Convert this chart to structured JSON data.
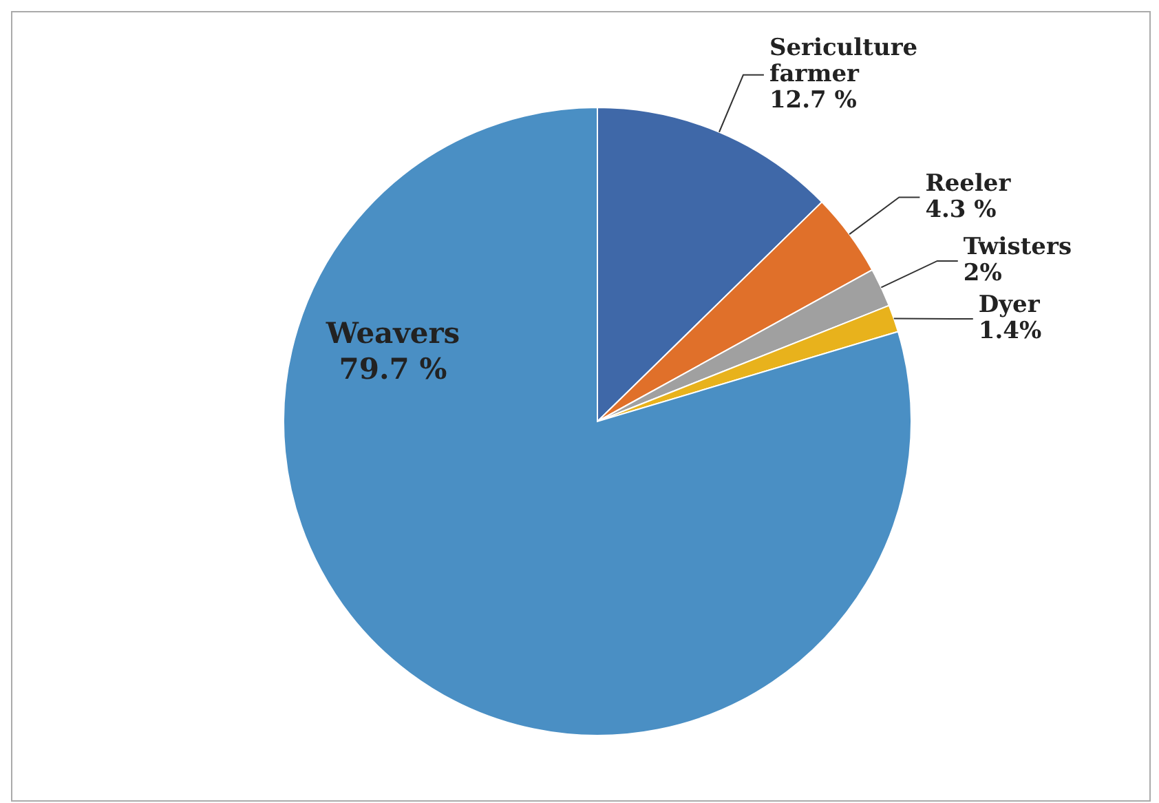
{
  "chart_data": {
    "type": "pie",
    "categories": [
      "Sericulture farmer",
      "Reeler",
      "Twisters",
      "Dyer",
      "Weavers"
    ],
    "values": [
      12.7,
      4.3,
      2,
      1.4,
      79.7
    ],
    "colors": [
      "#3f68a8",
      "#e0702a",
      "#a0a0a0",
      "#e8b21c",
      "#4a8fc4"
    ],
    "value_labels": [
      "12.7 %",
      "4.3 %",
      "2%",
      "1.4%",
      "79.7 %"
    ],
    "legend": false
  }
}
